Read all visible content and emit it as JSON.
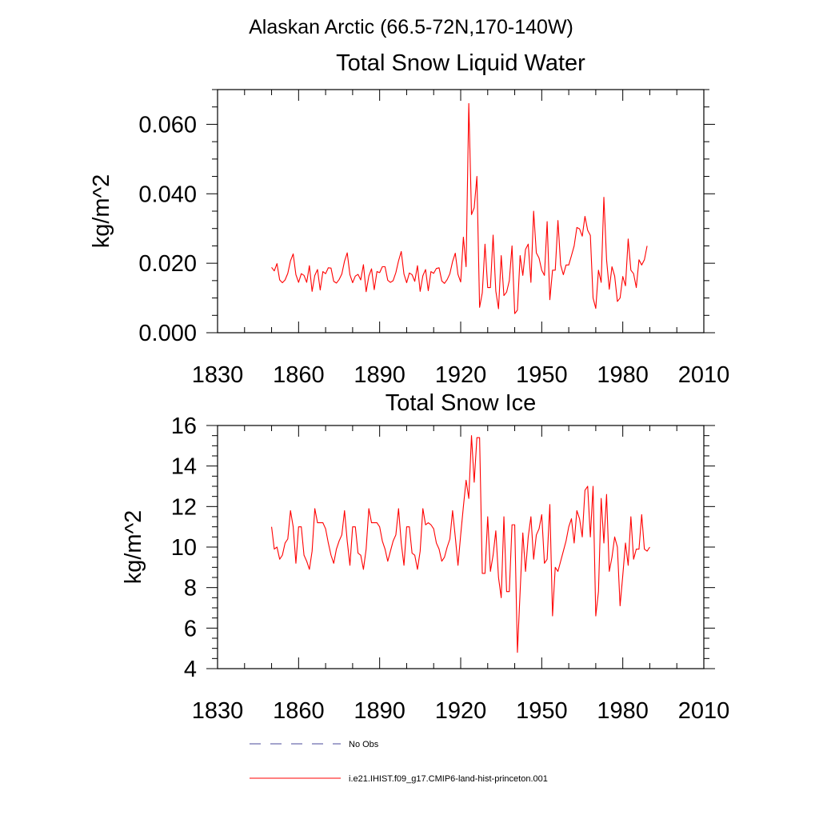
{
  "figure": {
    "title": "Alaskan Arctic (66.5-72N,170-140W)"
  },
  "legend": {
    "entries": [
      {
        "label": "No Obs",
        "color": "#4a4a9a",
        "dash": "dashed"
      },
      {
        "label": "i.e21.IHIST.f09_g17.CMIP6-land-hist-princeton.001",
        "color": "#ff0000",
        "dash": "solid"
      }
    ]
  },
  "chart_data": [
    {
      "type": "line",
      "title": "Total Snow Liquid Water",
      "ylabel": "kg/m^2",
      "xlabel": "",
      "xlim": [
        1830,
        2010
      ],
      "ylim": [
        0,
        0.07
      ],
      "xticks": [
        1830,
        1860,
        1890,
        1920,
        1950,
        1980,
        2010
      ],
      "xtick_labels": [
        "1830",
        "1860",
        "1890",
        "1920",
        "1950",
        "1980",
        "2010"
      ],
      "yticks": [
        0,
        0.02,
        0.04,
        0.06
      ],
      "ytick_labels": [
        "0.000",
        "0.020",
        "0.040",
        "0.060"
      ],
      "grid": false,
      "series": [
        {
          "name": "i.e21.IHIST.f09_g17.CMIP6-land-hist-princeton.001",
          "color": "#ff0000",
          "x_start": 1850,
          "x_step": 1,
          "values": [
            0.0188,
            0.0178,
            0.0199,
            0.0152,
            0.0144,
            0.0152,
            0.0171,
            0.0207,
            0.0227,
            0.0167,
            0.0145,
            0.017,
            0.0165,
            0.0145,
            0.0193,
            0.0119,
            0.0165,
            0.0182,
            0.0123,
            0.0176,
            0.017,
            0.0187,
            0.0186,
            0.0148,
            0.0143,
            0.0153,
            0.0169,
            0.0206,
            0.023,
            0.0167,
            0.0144,
            0.0163,
            0.0168,
            0.0152,
            0.0196,
            0.0118,
            0.0163,
            0.0184,
            0.0124,
            0.0176,
            0.0173,
            0.019,
            0.019,
            0.0151,
            0.0145,
            0.015,
            0.0173,
            0.0207,
            0.0234,
            0.0169,
            0.0144,
            0.0172,
            0.0167,
            0.0148,
            0.0193,
            0.0119,
            0.0164,
            0.0182,
            0.0121,
            0.0176,
            0.0171,
            0.0185,
            0.0187,
            0.0149,
            0.0142,
            0.0153,
            0.017,
            0.0205,
            0.0229,
            0.0168,
            0.0146,
            0.0275,
            0.019,
            0.066,
            0.034,
            0.036,
            0.045,
            0.0073,
            0.0115,
            0.0255,
            0.013,
            0.013,
            0.0281,
            0.012,
            0.0069,
            0.0222,
            0.0107,
            0.0117,
            0.015,
            0.025,
            0.0055,
            0.0065,
            0.0222,
            0.0165,
            0.024,
            0.0255,
            0.0145,
            0.035,
            0.023,
            0.0215,
            0.018,
            0.0165,
            0.032,
            0.0095,
            0.018,
            0.018,
            0.0323,
            0.0195,
            0.0167,
            0.0195,
            0.0195,
            0.0222,
            0.025,
            0.0303,
            0.0299,
            0.0278,
            0.0335,
            0.0295,
            0.028,
            0.01,
            0.007,
            0.018,
            0.0145,
            0.039,
            0.021,
            0.0125,
            0.019,
            0.0163,
            0.009,
            0.01,
            0.0162,
            0.0135,
            0.027,
            0.018,
            0.017,
            0.013,
            0.021,
            0.0195,
            0.021,
            0.025
          ]
        }
      ]
    },
    {
      "type": "line",
      "title": "Total Snow Ice",
      "ylabel": "kg/m^2",
      "xlabel": "",
      "xlim": [
        1830,
        2010
      ],
      "ylim": [
        4,
        16
      ],
      "xticks": [
        1830,
        1860,
        1890,
        1920,
        1950,
        1980,
        2010
      ],
      "xtick_labels": [
        "1830",
        "1860",
        "1890",
        "1920",
        "1950",
        "1980",
        "2010"
      ],
      "yticks": [
        4,
        6,
        8,
        10,
        12,
        14,
        16
      ],
      "ytick_labels": [
        "4",
        "6",
        "8",
        "10",
        "12",
        "14",
        "16"
      ],
      "grid": false,
      "series": [
        {
          "name": "i.e21.IHIST.f09_g17.CMIP6-land-hist-princeton.001",
          "color": "#ff0000",
          "x_start": 1850,
          "x_step": 1,
          "values": [
            11.0,
            9.9,
            10.0,
            9.4,
            9.6,
            10.2,
            10.4,
            11.8,
            11.0,
            9.2,
            11.0,
            11.0,
            9.6,
            9.3,
            8.9,
            9.8,
            11.9,
            11.2,
            11.2,
            11.2,
            10.9,
            10.2,
            9.6,
            9.2,
            9.9,
            10.3,
            10.6,
            11.8,
            10.3,
            9.1,
            11.0,
            11.0,
            9.7,
            9.6,
            8.9,
            9.9,
            11.9,
            11.2,
            11.2,
            11.2,
            11.0,
            10.3,
            9.9,
            9.3,
            9.8,
            10.3,
            10.6,
            11.9,
            10.2,
            9.1,
            11.0,
            11.0,
            9.7,
            9.6,
            8.9,
            9.8,
            11.9,
            11.1,
            11.2,
            11.1,
            10.9,
            10.2,
            9.9,
            9.3,
            9.5,
            10.0,
            10.4,
            11.8,
            10.5,
            9.1,
            10.6,
            12.0,
            13.3,
            12.4,
            15.5,
            13.2,
            15.4,
            15.4,
            8.7,
            8.7,
            11.5,
            8.8,
            9.6,
            10.8,
            8.5,
            7.5,
            11.5,
            7.8,
            7.8,
            11.1,
            11.1,
            4.8,
            7.8,
            10.7,
            8.8,
            10.5,
            11.5,
            9.4,
            10.6,
            10.9,
            11.6,
            9.2,
            9.4,
            12.1,
            6.6,
            9.0,
            8.8,
            9.3,
            9.8,
            10.3,
            11.0,
            11.4,
            10.2,
            11.8,
            11.4,
            10.5,
            12.8,
            13.0,
            10.5,
            13.0,
            6.6,
            7.8,
            12.4,
            10.2,
            12.6,
            8.8,
            9.5,
            10.5,
            10.0,
            7.1,
            8.6,
            10.2,
            9.1,
            11.5,
            9.4,
            9.9,
            9.9,
            11.6,
            9.9,
            9.8,
            10.0
          ]
        }
      ]
    }
  ]
}
